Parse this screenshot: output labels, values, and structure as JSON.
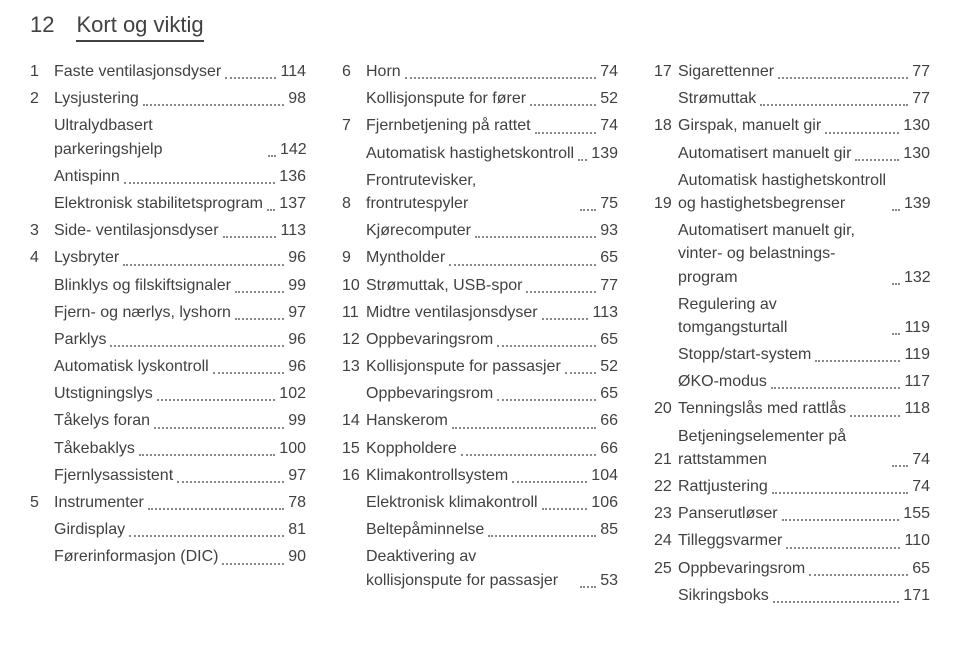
{
  "header": {
    "pageNumber": "12",
    "title": "Kort og viktig"
  },
  "columns": [
    [
      {
        "n": "1",
        "label": "Faste ventilasjonsdyser",
        "p": "114"
      },
      {
        "n": "2",
        "label": "Lysjustering",
        "p": "98"
      },
      {
        "n": "",
        "label": "Ultralydbasert parkeringshjelp",
        "p": "142"
      },
      {
        "n": "",
        "label": "Antispinn",
        "p": "136"
      },
      {
        "n": "",
        "label": "Elektronisk stabilitets­program",
        "p": "137"
      },
      {
        "n": "3",
        "label": "Side- ventilasjonsdyser",
        "p": "113"
      },
      {
        "n": "4",
        "label": "Lysbryter",
        "p": "96"
      },
      {
        "n": "",
        "label": "Blinklys og filskiftsignaler",
        "p": "99"
      },
      {
        "n": "",
        "label": "Fjern- og nærlys, lyshorn",
        "p": "97"
      },
      {
        "n": "",
        "label": "Parklys",
        "p": "96"
      },
      {
        "n": "",
        "label": "Automatisk lyskontroll",
        "p": "96"
      },
      {
        "n": "",
        "label": "Utstigningslys",
        "p": "102"
      },
      {
        "n": "",
        "label": "Tåkelys foran",
        "p": "99"
      },
      {
        "n": "",
        "label": "Tåkebaklys",
        "p": "100"
      },
      {
        "n": "",
        "label": "Fjernlysassistent",
        "p": "97"
      },
      {
        "n": "5",
        "label": "Instrumenter",
        "p": "78"
      },
      {
        "n": "",
        "label": "Girdisplay",
        "p": "81"
      },
      {
        "n": "",
        "label": "Førerinformasjon (DIC)",
        "p": "90"
      }
    ],
    [
      {
        "n": "6",
        "label": "Horn",
        "p": "74"
      },
      {
        "n": "",
        "label": "Kollisjonspute for fører",
        "p": "52"
      },
      {
        "n": "7",
        "label": "Fjernbetjening på rattet",
        "p": "74"
      },
      {
        "n": "",
        "label": "Automatisk hastighets­kontroll",
        "p": "139"
      },
      {
        "n": "8",
        "label": "Frontrutevisker, frontrutespyler",
        "p": "75"
      },
      {
        "n": "",
        "label": "Kjørecomputer",
        "p": "93"
      },
      {
        "n": "9",
        "label": "Myntholder",
        "p": "65"
      },
      {
        "n": "10",
        "label": "Strømuttak, USB-spor",
        "p": "77"
      },
      {
        "n": "11",
        "label": "Midtre ventilasjonsdyser",
        "p": "113"
      },
      {
        "n": "12",
        "label": "Oppbevaringsrom",
        "p": "65"
      },
      {
        "n": "13",
        "label": "Kollisjonspute for passasjer",
        "p": "52"
      },
      {
        "n": "",
        "label": "Oppbevaringsrom",
        "p": "65"
      },
      {
        "n": "14",
        "label": "Hanskerom",
        "p": "66"
      },
      {
        "n": "15",
        "label": "Koppholdere",
        "p": "66"
      },
      {
        "n": "16",
        "label": "Klimakontrollsystem",
        "p": "104"
      },
      {
        "n": "",
        "label": "Elektronisk klimakontroll",
        "p": "106"
      },
      {
        "n": "",
        "label": "Beltepåminnelse",
        "p": "85"
      },
      {
        "n": "",
        "label": "Deaktivering av kollisjonspute for passasjer",
        "p": "53"
      }
    ],
    [
      {
        "n": "17",
        "label": "Sigarettenner",
        "p": "77"
      },
      {
        "n": "",
        "label": "Strømuttak",
        "p": "77"
      },
      {
        "n": "18",
        "label": "Girspak, manuelt gir",
        "p": "130"
      },
      {
        "n": "",
        "label": "Automatisert manuelt gir",
        "p": "130"
      },
      {
        "n": "19",
        "label": "Automatisk hastighets­kontroll og hastighetsbeg­renser",
        "p": "139"
      },
      {
        "n": "",
        "label": "Automatisert manuelt gir, vinter- og belastnings­program",
        "p": "132"
      },
      {
        "n": "",
        "label": "Regulering av tomgangsturtall",
        "p": "119"
      },
      {
        "n": "",
        "label": "Stopp/start-system",
        "p": "119"
      },
      {
        "n": "",
        "label": "ØKO-modus",
        "p": "117"
      },
      {
        "n": "20",
        "label": "Tenningslås med rattlås",
        "p": "118"
      },
      {
        "n": "21",
        "label": "Betjeningselementer på rattstammen",
        "p": "74"
      },
      {
        "n": "22",
        "label": "Rattjustering",
        "p": "74"
      },
      {
        "n": "23",
        "label": "Panserutløser",
        "p": "155"
      },
      {
        "n": "24",
        "label": "Tilleggsvarmer",
        "p": "110"
      },
      {
        "n": "25",
        "label": "Oppbevaringsrom",
        "p": "65"
      },
      {
        "n": "",
        "label": "Sikringsboks",
        "p": "171"
      }
    ]
  ]
}
